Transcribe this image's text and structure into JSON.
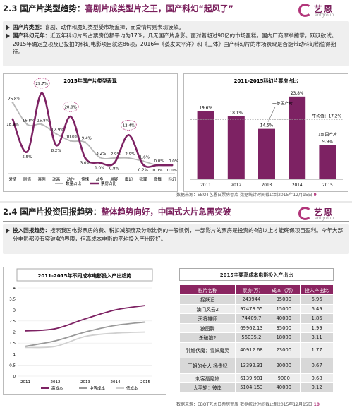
{
  "slide1": {
    "title_prefix": "2.3 国产片类型趋势：",
    "title_highlight": "喜剧片成类型片之王，国产科幻“起风了”",
    "logo_cn": "艺恩",
    "logo_en": "entgroup",
    "bullet1_label": "国产片类型：",
    "bullet1_text": "喜剧、动作和魔幻类型受市场追捧，而爱情片则表现疲软。",
    "bullet2_label": "国产科幻元年：",
    "bullet2_text": "近五年科幻片所占票房份额平均为17%，几无国产片身影。面对着超过90亿的市场蛋糕，国内厂商摩拳擦掌，跃跃欲试。2015年确定立项及已投拍的科幻电影项目就达86项，2016年《蒸发太平洋》和《三体》国产科幻片的市场表现是否能带动科幻热值得期待。",
    "footnote": "数据来源：EBOT艺恩日票房智库  数据统计时间截止到2015年12月15日",
    "page": "9"
  },
  "slide2": {
    "title_prefix": "2.4 国产片投资回报趋势：",
    "title_highlight": "整体趋势向好，中国式大片急需突破",
    "logo_cn": "艺恩",
    "logo_en": "entgroup",
    "bullet1_label": "投入回报趋势：",
    "bullet1_text": "按照我国电影票房的费、税扣减额度及分账比例的一般惯例，一部影片的票房是投资的4倍以上才能确保项目盈利。今年大部分电影都没有突破4的界限，但高成本电影的平均投入产出较好。",
    "footnote": "数据来源：EBOT艺恩日票房智库  数据统计时间截止到2015年12月15日",
    "page": "10",
    "table": {
      "title": "2015主要高成本电影投入产出比",
      "headers": [
        "影片名称",
        "票房(万)",
        "成本（万）",
        "投入产出比"
      ],
      "rows": [
        [
          "捉妖记",
          "243944",
          "35000",
          "6.96"
        ],
        [
          "澳门风云2",
          "97473.55",
          "15000",
          "6.49"
        ],
        [
          "天将雄师",
          "74409.7",
          "40000",
          "1.86"
        ],
        [
          "狼图腾",
          "69962.13",
          "35000",
          "1.99"
        ],
        [
          "杀破狼2",
          "56035.2",
          "18000",
          "3.11"
        ],
        [
          "钟馗伏魔：雪妖魔灵",
          "40912.68",
          "23000",
          "1.77"
        ],
        [
          "王朝的女人·杨贵妃",
          "13392.31",
          "20000",
          "0.67"
        ],
        [
          "刺客聂隐娘",
          "6139.981",
          "9000",
          "0.68"
        ],
        [
          "太平轮：彼岸",
          "5104.153",
          "40000",
          "0.12"
        ]
      ]
    }
  },
  "chart_data": [
    {
      "type": "line",
      "title": "2015年国产片类型表现",
      "categories": [
        "爱情",
        "剧情",
        "喜剧",
        "动画",
        "动作",
        "惊悚",
        "战争",
        "悬疑",
        "魔幻",
        "犯罪",
        "歌舞",
        "科幻"
      ],
      "series": [
        {
          "name": "数量占比",
          "values": [
            25.8,
            16.8,
            16.8,
            12.9,
            10.0,
            9.4,
            3.2,
            2.9,
            2.9,
            1.6,
            0.0,
            0.0
          ],
          "labels": [
            "25.8%",
            "16.8%",
            "16.8%",
            "12.9%",
            "10.0%",
            "9.4%",
            "3.2%",
            "2.9%",
            "2.9%",
            "1.6%",
            "0.0%",
            "0.0%"
          ],
          "color": "#b8b8b8"
        },
        {
          "name": "票房占比",
          "values": [
            18.9,
            5.5,
            29.7,
            8.2,
            20.0,
            3.0,
            1.0,
            0.8,
            12.4,
            0.2,
            0.0,
            0.0
          ],
          "labels": [
            "18.9%",
            "5.5%",
            "29.7%",
            "8.2%",
            "20.0%",
            "3.0%",
            "1.0%",
            "0.8%",
            "12.4%",
            "0.2%",
            "0.0%",
            "0.0%"
          ],
          "color": "#7d2263"
        }
      ],
      "circled": [
        2,
        4,
        8
      ],
      "ylim": [
        0,
        32
      ]
    },
    {
      "type": "bar",
      "title": "2011-2015科幻片票房占比",
      "categories": [
        "2011",
        "2012",
        "2013",
        "2014",
        "2015"
      ],
      "values": [
        19.6,
        18.1,
        14.5,
        23.8,
        9.9
      ],
      "labels": [
        "19.6%",
        "18.1%",
        "14.5%",
        "23.8%",
        "9.9%"
      ],
      "average": 17.2,
      "average_label": "平均值：17.2%",
      "annotation_2013": "一部国产片",
      "annotation_2015": "1部国产片",
      "ylim": [
        0,
        26
      ],
      "color": "#7d2263"
    },
    {
      "type": "line",
      "title": "2011-2015年不同成本电影投入产出趋势",
      "categories": [
        "2011",
        "2012",
        "2013",
        "2014",
        "2015"
      ],
      "yticks": [
        "0",
        "0.5",
        "1",
        "1.5",
        "2",
        "2.5",
        "3",
        "3.5",
        "4"
      ],
      "series": [
        {
          "name": "高成本",
          "values": [
            2.05,
            2.15,
            2.6,
            3.0,
            3.2
          ],
          "color": "#7d2263"
        },
        {
          "name": "中等成本",
          "values": [
            1.35,
            1.6,
            2.0,
            2.3,
            2.45
          ],
          "color": "#999999"
        },
        {
          "name": "低成本",
          "values": [
            1.3,
            1.35,
            1.8,
            1.95,
            2.0
          ],
          "color": "#d0d0d0"
        }
      ],
      "ylim": [
        0,
        4
      ]
    }
  ]
}
